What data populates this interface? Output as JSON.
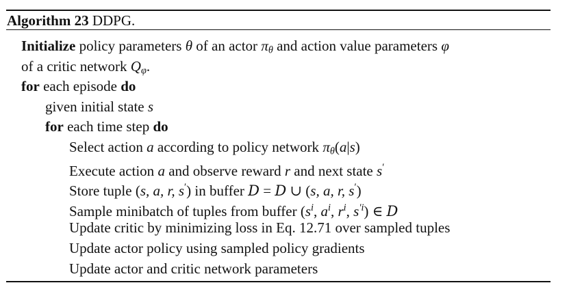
{
  "algorithm": {
    "label": "Algorithm 23",
    "name": "DDPG."
  },
  "lines": [
    {
      "indent": 0,
      "parts": [
        {
          "t": "Initialize",
          "s": "kw"
        },
        {
          "t": " policy parameters "
        },
        {
          "t": "θ",
          "s": "m"
        },
        {
          "t": " of an actor "
        },
        {
          "t": "π",
          "s": "m"
        },
        {
          "t": "θ",
          "s": "m",
          "pos": "sub"
        },
        {
          "t": " and action value parameters "
        },
        {
          "t": "φ",
          "s": "m"
        }
      ]
    },
    {
      "indent": 0,
      "parts": [
        {
          "t": "of a critic network "
        },
        {
          "t": "Q",
          "s": "m"
        },
        {
          "t": "φ",
          "s": "m",
          "pos": "sub"
        },
        {
          "t": "."
        }
      ]
    },
    {
      "indent": 0,
      "parts": [
        {
          "t": "for",
          "s": "kw"
        },
        {
          "t": " each episode "
        },
        {
          "t": "do",
          "s": "kw"
        }
      ]
    },
    {
      "indent": 1,
      "parts": [
        {
          "t": "given initial state "
        },
        {
          "t": "s",
          "s": "m"
        }
      ]
    },
    {
      "indent": 1,
      "parts": [
        {
          "t": "for",
          "s": "kw"
        },
        {
          "t": " each time step "
        },
        {
          "t": "do",
          "s": "kw"
        }
      ]
    },
    {
      "indent": 2,
      "parts": [
        {
          "t": "Select action "
        },
        {
          "t": "a",
          "s": "m"
        },
        {
          "t": " according to policy network "
        },
        {
          "t": "π",
          "s": "m"
        },
        {
          "t": "θ",
          "s": "m",
          "pos": "sub"
        },
        {
          "t": "("
        },
        {
          "t": "a",
          "s": "m"
        },
        {
          "t": "|"
        },
        {
          "t": "s",
          "s": "m"
        },
        {
          "t": ")"
        }
      ]
    },
    {
      "indent": 2,
      "parts": [
        {
          "t": "Execute action "
        },
        {
          "t": "a",
          "s": "m"
        },
        {
          "t": " and observe reward "
        },
        {
          "t": "r",
          "s": "m"
        },
        {
          "t": " and next state "
        },
        {
          "t": "s",
          "s": "m"
        },
        {
          "t": "′",
          "pos": "sup"
        }
      ]
    },
    {
      "indent": 2,
      "parts": [
        {
          "t": "Store tuple ("
        },
        {
          "t": "s, a, r, s",
          "s": "m"
        },
        {
          "t": "′",
          "pos": "sup"
        },
        {
          "t": ") in buffer "
        },
        {
          "t": "D",
          "s": "cal"
        },
        {
          "t": " = "
        },
        {
          "t": "D",
          "s": "cal"
        },
        {
          "t": " ∪ ("
        },
        {
          "t": "s, a, r, s",
          "s": "m"
        },
        {
          "t": "′",
          "pos": "sup"
        },
        {
          "t": ")"
        }
      ]
    },
    {
      "indent": 2,
      "parts": [
        {
          "t": "Sample minibatch of tuples from buffer ("
        },
        {
          "t": "s",
          "s": "m"
        },
        {
          "t": "i",
          "s": "m",
          "pos": "sup"
        },
        {
          "t": ", "
        },
        {
          "t": "a",
          "s": "m"
        },
        {
          "t": "i",
          "s": "m",
          "pos": "sup"
        },
        {
          "t": ", "
        },
        {
          "t": "r",
          "s": "m"
        },
        {
          "t": "i",
          "s": "m",
          "pos": "sup"
        },
        {
          "t": ", "
        },
        {
          "t": "s",
          "s": "m"
        },
        {
          "t": "′i",
          "s": "m",
          "pos": "sup"
        },
        {
          "t": ") ∈ "
        },
        {
          "t": "D",
          "s": "cal"
        }
      ]
    },
    {
      "indent": 2,
      "parts": [
        {
          "t": "Update critic by minimizing loss in Eq. 12.71 over sampled tuples"
        }
      ]
    },
    {
      "indent": 2,
      "parts": [
        {
          "t": "Update actor policy using sampled policy gradients"
        }
      ]
    },
    {
      "indent": 2,
      "parts": [
        {
          "t": "Update actor and critic network parameters"
        }
      ]
    }
  ]
}
